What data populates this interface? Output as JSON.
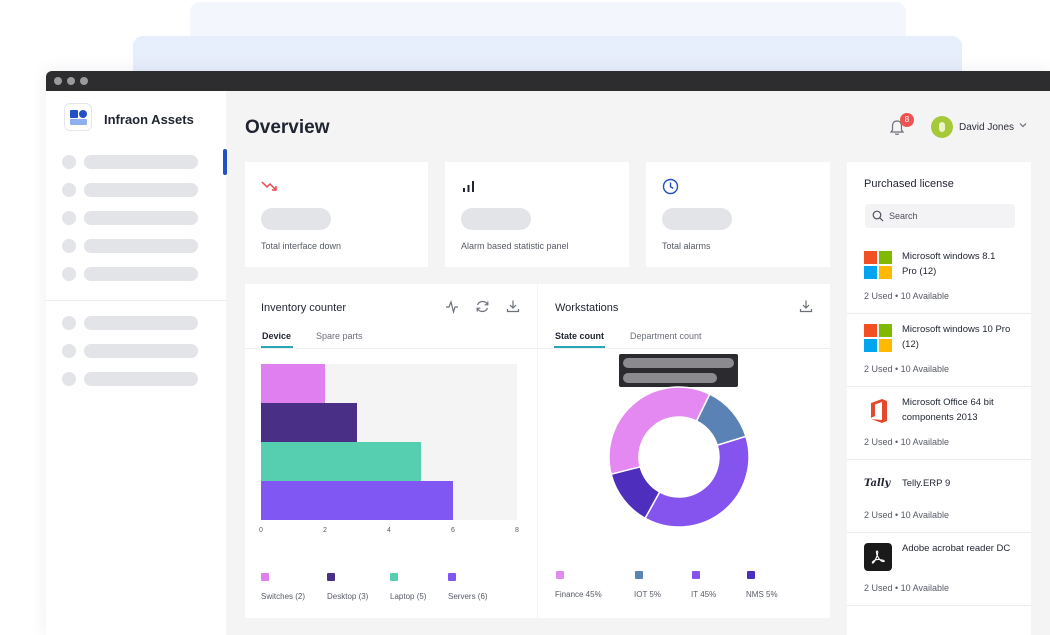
{
  "app": {
    "brand": "Infraon Assets"
  },
  "header": {
    "title": "Overview",
    "notification_count": "8",
    "user_name": "David Jones"
  },
  "stats": [
    {
      "label": "Total interface down",
      "icon": "trend-down-icon",
      "color": "#e5484d"
    },
    {
      "label": "Alarm based statistic panel",
      "icon": "bar-chart-icon",
      "color": "#1f2430"
    },
    {
      "label": "Total alarms",
      "icon": "clock-icon",
      "color": "#2250c6"
    }
  ],
  "inventory": {
    "title": "Inventory counter",
    "tabs": [
      "Device",
      "Spare parts"
    ],
    "chart_data": {
      "type": "bar",
      "orientation": "horizontal",
      "categories": [
        "Switches",
        "Desktop",
        "Laptop",
        "Servers"
      ],
      "values": [
        2,
        3,
        5,
        6
      ],
      "xlim": [
        0,
        8
      ],
      "xticks": [
        "0",
        "2",
        "4",
        "6",
        "8"
      ],
      "colors": [
        "#e07ff0",
        "#4a2f86",
        "#55cfb0",
        "#8057f3"
      ],
      "legend": [
        "Switches (2)",
        "Desktop (3)",
        "Laptop (5)",
        "Servers (6)"
      ],
      "legend_position": "bottom"
    }
  },
  "workstations": {
    "title": "Workstations",
    "tabs": [
      "State count",
      "Department count"
    ],
    "chart_data": {
      "type": "pie",
      "donut": true,
      "categories": [
        "Finance",
        "IOT",
        "IT",
        "NMS"
      ],
      "values": [
        45,
        5,
        45,
        5
      ],
      "colors": [
        "#e389f1",
        "#5a82b4",
        "#8554ef",
        "#4e2fbd"
      ],
      "legend": [
        "Finance 45%",
        "IOT 5%",
        "IT 45%",
        "NMS 5%"
      ],
      "legend_position": "bottom"
    }
  },
  "licenses": {
    "title": "Purchased license",
    "search_placeholder": "Search",
    "items": [
      {
        "name": "Microsoft windows 8.1 Pro (12)",
        "count": "2 Used • 10 Available",
        "icon": "windows-icon"
      },
      {
        "name": "Microsoft windows 10 Pro (12)",
        "count": "2 Used • 10 Available",
        "icon": "windows-icon"
      },
      {
        "name": "Microsoft Office 64 bit components 2013",
        "count": "2 Used • 10 Available",
        "icon": "office-icon"
      },
      {
        "name": "Telly.ERP 9",
        "count": "2 Used • 10 Available",
        "icon": "tally-logo-icon",
        "logo_text": "Tally"
      },
      {
        "name": "Adobe acrobat reader DC",
        "count": "2 Used • 10 Available",
        "icon": "acrobat-icon"
      }
    ]
  }
}
